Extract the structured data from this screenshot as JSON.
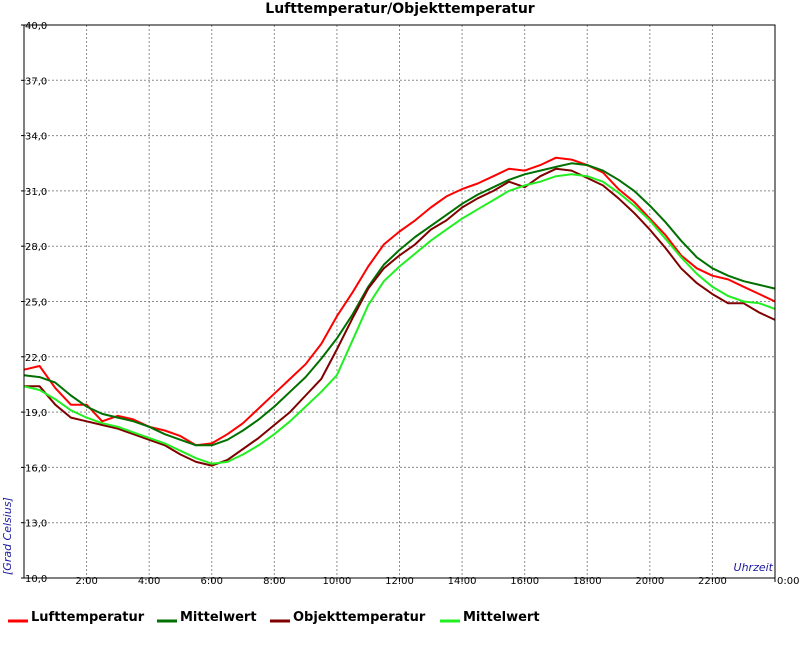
{
  "chart_data": {
    "type": "line",
    "title": "Lufttemperatur/Objekttemperatur",
    "xlabel": "Uhrzeit",
    "ylabel": "[Grad Celsius]",
    "ylim": [
      10,
      40
    ],
    "xlim": [
      0,
      24
    ],
    "grid": true,
    "legend_position": "bottom",
    "y_ticks": [
      "10,0",
      "13,0",
      "16,0",
      "19,0",
      "22,0",
      "25,0",
      "28,0",
      "31,0",
      "34,0",
      "37,0",
      "40,0"
    ],
    "y_tick_values": [
      10,
      13,
      16,
      19,
      22,
      25,
      28,
      31,
      34,
      37,
      40
    ],
    "x_ticks": [
      "2:00",
      "4:00",
      "6:00",
      "8:00",
      "10:00",
      "12:00",
      "14:00",
      "16:00",
      "18:00",
      "20:00",
      "22:00",
      "0:00"
    ],
    "x_tick_values": [
      2,
      4,
      6,
      8,
      10,
      12,
      14,
      16,
      18,
      20,
      22,
      24
    ],
    "x_unit": "hour",
    "series": [
      {
        "name": "Lufttemperatur",
        "color": "#ff0000",
        "x": [
          0,
          0.5,
          1,
          1.5,
          2,
          2.5,
          3,
          3.5,
          4,
          4.5,
          5,
          5.5,
          6,
          6.5,
          7,
          7.5,
          8,
          8.5,
          9,
          9.5,
          10,
          10.5,
          11,
          11.5,
          12,
          12.5,
          13,
          13.5,
          14,
          14.5,
          15,
          15.5,
          16,
          16.5,
          17,
          17.5,
          18,
          18.5,
          19,
          19.5,
          20,
          20.5,
          21,
          21.5,
          22,
          22.5,
          23,
          23.5,
          24
        ],
        "values": [
          21.3,
          21.5,
          20.3,
          19.4,
          19.4,
          18.5,
          18.8,
          18.6,
          18.2,
          18.0,
          17.7,
          17.2,
          17.3,
          17.8,
          18.4,
          19.2,
          20.0,
          20.8,
          21.6,
          22.7,
          24.2,
          25.5,
          26.9,
          28.1,
          28.8,
          29.4,
          30.1,
          30.7,
          31.1,
          31.4,
          31.8,
          32.2,
          32.1,
          32.4,
          32.8,
          32.7,
          32.4,
          32.0,
          31.1,
          30.4,
          29.5,
          28.6,
          27.5,
          26.8,
          26.4,
          26.2,
          25.8,
          25.4,
          25.0
        ]
      },
      {
        "name": "Mittelwert",
        "color": "#007000",
        "x": [
          0,
          0.5,
          1,
          1.5,
          2,
          2.5,
          3,
          3.5,
          4,
          4.5,
          5,
          5.5,
          6,
          6.5,
          7,
          7.5,
          8,
          8.5,
          9,
          9.5,
          10,
          10.5,
          11,
          11.5,
          12,
          12.5,
          13,
          13.5,
          14,
          14.5,
          15,
          15.5,
          16,
          16.5,
          17,
          17.5,
          18,
          18.5,
          19,
          19.5,
          20,
          20.5,
          21,
          21.5,
          22,
          22.5,
          23,
          23.5,
          24
        ],
        "values": [
          21.0,
          20.9,
          20.6,
          19.9,
          19.3,
          18.9,
          18.7,
          18.5,
          18.2,
          17.8,
          17.5,
          17.2,
          17.2,
          17.5,
          18.0,
          18.6,
          19.3,
          20.1,
          20.9,
          21.9,
          23.0,
          24.3,
          25.8,
          27.0,
          27.8,
          28.5,
          29.1,
          29.7,
          30.3,
          30.8,
          31.2,
          31.6,
          31.9,
          32.1,
          32.3,
          32.5,
          32.4,
          32.1,
          31.6,
          31.0,
          30.2,
          29.3,
          28.3,
          27.4,
          26.8,
          26.4,
          26.1,
          25.9,
          25.7
        ]
      },
      {
        "name": "Objekttemperatur",
        "color": "#800000",
        "x": [
          0,
          0.5,
          1,
          1.5,
          2,
          2.5,
          3,
          3.5,
          4,
          4.5,
          5,
          5.5,
          6,
          6.5,
          7,
          7.5,
          8,
          8.5,
          9,
          9.5,
          10,
          10.5,
          11,
          11.5,
          12,
          12.5,
          13,
          13.5,
          14,
          14.5,
          15,
          15.5,
          16,
          16.5,
          17,
          17.5,
          18,
          18.5,
          19,
          19.5,
          20,
          20.5,
          21,
          21.5,
          22,
          22.5,
          23,
          23.5,
          24
        ],
        "values": [
          20.4,
          20.4,
          19.4,
          18.7,
          18.5,
          18.3,
          18.1,
          17.8,
          17.5,
          17.2,
          16.7,
          16.3,
          16.1,
          16.4,
          17.0,
          17.6,
          18.3,
          19.0,
          19.9,
          20.8,
          22.4,
          24.1,
          25.7,
          26.8,
          27.5,
          28.1,
          28.9,
          29.4,
          30.1,
          30.6,
          31.0,
          31.5,
          31.2,
          31.8,
          32.2,
          32.1,
          31.7,
          31.3,
          30.6,
          29.8,
          28.9,
          27.9,
          26.8,
          26.0,
          25.4,
          24.9,
          24.9,
          24.4,
          24.0
        ]
      },
      {
        "name": "Mittelwert",
        "color": "#22ee22",
        "x": [
          0,
          0.5,
          1,
          1.5,
          2,
          2.5,
          3,
          3.5,
          4,
          4.5,
          5,
          5.5,
          6,
          6.5,
          7,
          7.5,
          8,
          8.5,
          9,
          9.5,
          10,
          10.5,
          11,
          11.5,
          12,
          12.5,
          13,
          13.5,
          14,
          14.5,
          15,
          15.5,
          16,
          16.5,
          17,
          17.5,
          18,
          18.5,
          19,
          19.5,
          20,
          20.5,
          21,
          21.5,
          22,
          22.5,
          23,
          23.5,
          24
        ],
        "values": [
          20.4,
          20.2,
          19.7,
          19.1,
          18.7,
          18.4,
          18.2,
          17.9,
          17.6,
          17.3,
          16.9,
          16.5,
          16.2,
          16.3,
          16.7,
          17.2,
          17.8,
          18.5,
          19.3,
          20.1,
          21.0,
          22.9,
          24.8,
          26.1,
          26.9,
          27.6,
          28.3,
          28.9,
          29.5,
          30.0,
          30.5,
          31.0,
          31.3,
          31.5,
          31.8,
          31.9,
          31.8,
          31.5,
          30.9,
          30.2,
          29.4,
          28.4,
          27.4,
          26.5,
          25.8,
          25.3,
          25.0,
          24.9,
          24.6
        ]
      }
    ]
  }
}
